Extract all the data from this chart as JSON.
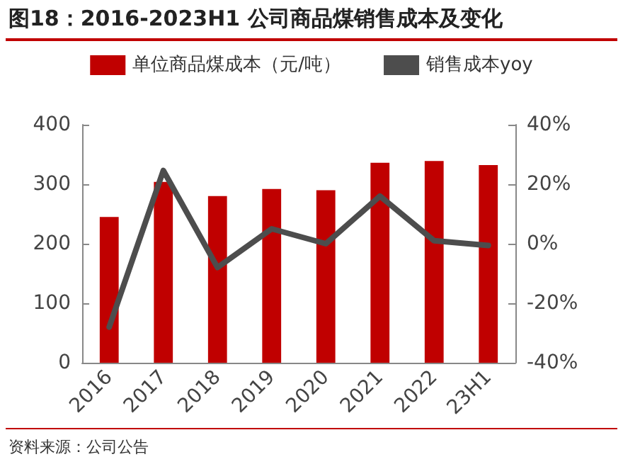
{
  "chart_data": {
    "type": "bar",
    "title": "图18：2016-2023H1 公司商品煤销售成本及变化",
    "categories": [
      "2016",
      "2017",
      "2018",
      "2019",
      "2020",
      "2021",
      "2022",
      "23H1"
    ],
    "series": [
      {
        "name": "单位商品煤成本（元/吨）",
        "color": "#c00000",
        "values": [
          245,
          304,
          280,
          292,
          290,
          336,
          339,
          332
        ]
      },
      {
        "name": "销售成本yoy",
        "type": "line",
        "axis": "y2",
        "color": "#4d4d4d",
        "values": [
          -28,
          24.6,
          -8,
          5,
          0,
          16,
          1,
          -0.6
        ]
      }
    ],
    "ylim": [
      0,
      400
    ],
    "yticks": [
      0,
      100,
      200,
      300,
      400
    ],
    "y2lim": [
      -40,
      40
    ],
    "y2ticks": [
      {
        "value": -40,
        "label": "-40%"
      },
      {
        "value": -20,
        "label": "-20%"
      },
      {
        "value": 0,
        "label": "0%"
      },
      {
        "value": 20,
        "label": "20%"
      },
      {
        "value": 40,
        "label": "40%"
      }
    ],
    "legend": "top",
    "grid": false,
    "marker": "none",
    "line_style": "solid",
    "annotations": [
      "资料来源：公司公告"
    ]
  }
}
